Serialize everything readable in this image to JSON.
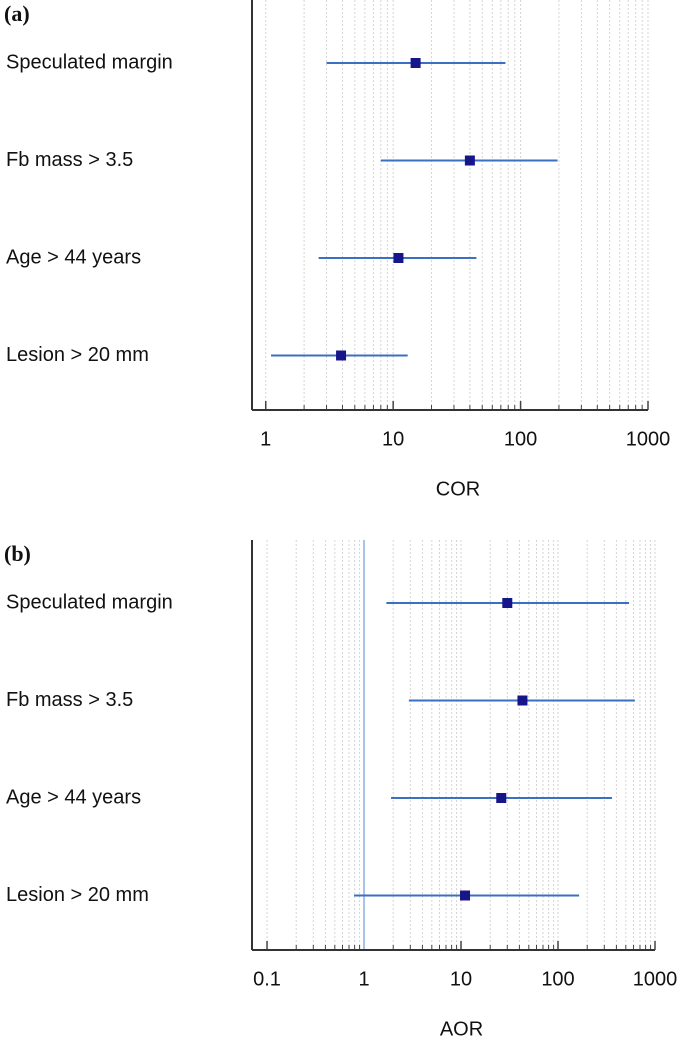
{
  "chart_data": [
    {
      "type": "forest",
      "panel_label": "(a)",
      "xlabel": "COR",
      "xscale": "log",
      "categories": [
        "Speculated margin",
        "Fb mass > 3.5",
        "Age > 44 years",
        "Lesion > 20 mm"
      ],
      "values": [
        15,
        40,
        11,
        3.9
      ],
      "lower": [
        3.0,
        8.0,
        2.6,
        1.1
      ],
      "upper": [
        76,
        195,
        45,
        13
      ],
      "xlim": [
        0.78,
        1000
      ],
      "xticks": [
        1,
        10,
        100,
        1000
      ],
      "minor_xticks": [
        2,
        3,
        4,
        5,
        6,
        7,
        8,
        9,
        20,
        30,
        40,
        50,
        60,
        70,
        80,
        90,
        200,
        300,
        400,
        500,
        600,
        700,
        800,
        900
      ],
      "grid": true,
      "color": "#3b6fc2",
      "marker_color": "#16168a"
    },
    {
      "type": "forest",
      "panel_label": "(b)",
      "xlabel": "AOR",
      "xscale": "log",
      "categories": [
        "Speculated margin",
        "Fb mass > 3.5",
        "Age > 44 years",
        "Lesion > 20 mm"
      ],
      "values": [
        30,
        43,
        26,
        11
      ],
      "lower": [
        1.7,
        2.9,
        1.9,
        0.79
      ],
      "upper": [
        540,
        620,
        360,
        165
      ],
      "xlim": [
        0.07,
        1000
      ],
      "xticks": [
        0.1,
        1,
        10,
        100,
        1000
      ],
      "minor_xticks": [
        0.2,
        0.3,
        0.4,
        0.5,
        0.6,
        0.7,
        0.8,
        0.9,
        2,
        3,
        4,
        5,
        6,
        7,
        8,
        9,
        20,
        30,
        40,
        50,
        60,
        70,
        80,
        90,
        200,
        300,
        400,
        500,
        600,
        700,
        800,
        900
      ],
      "reference_line": 1,
      "grid": true,
      "color": "#3b6fc2",
      "marker_color": "#16168a"
    }
  ]
}
